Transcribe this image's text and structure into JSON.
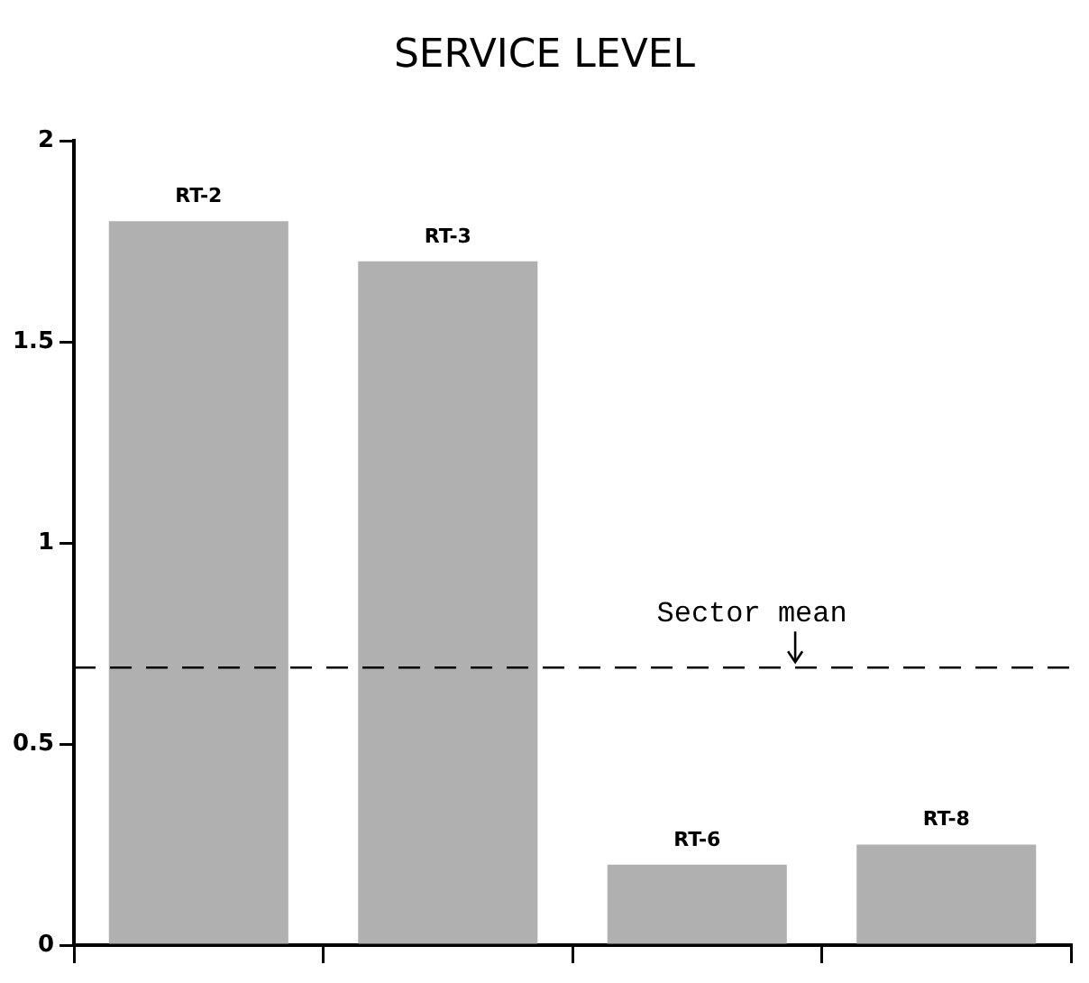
{
  "chart_data": {
    "type": "bar",
    "title": "SERVICE LEVEL",
    "categories": [
      "RT-2",
      "RT-3",
      "RT-6",
      "RT-8"
    ],
    "values": [
      1.8,
      1.7,
      0.2,
      0.25
    ],
    "color": "#b0b0b0",
    "ylim": [
      0,
      2
    ],
    "yticks": [
      0,
      0.5,
      1,
      1.5,
      2
    ],
    "grid": false,
    "legend": false,
    "ref_lines": [
      {
        "axis": "y",
        "value": 0.69,
        "label": "Sector mean",
        "line_style": "dashed",
        "color": "#000000"
      }
    ]
  }
}
